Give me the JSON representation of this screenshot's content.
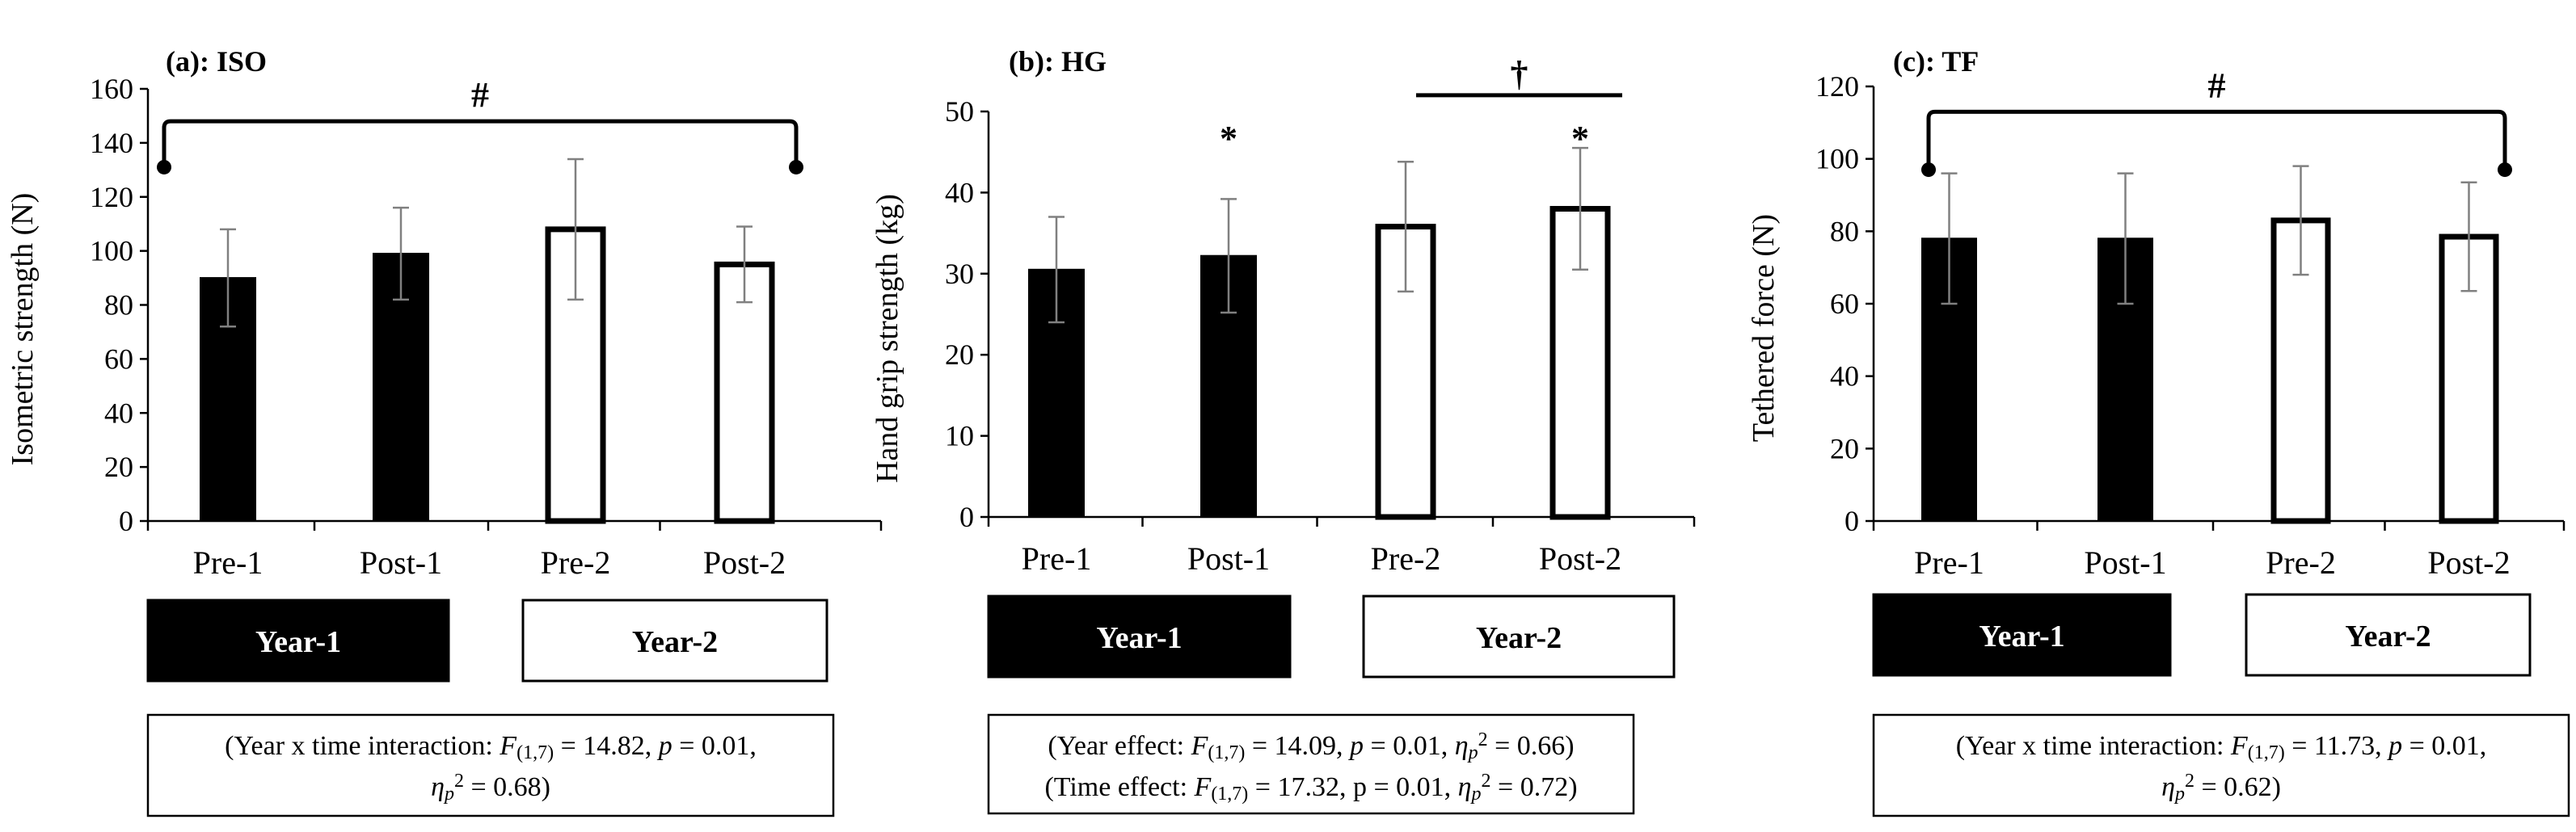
{
  "figure": {
    "background": "#ffffff"
  },
  "chart_data": [
    {
      "type": "bar",
      "title": "(a): ISO",
      "ylabel": "Isometric strength (N)",
      "xlabel": "",
      "ylim": [
        0,
        160
      ],
      "yticks": [
        0,
        20,
        40,
        60,
        80,
        100,
        120,
        140,
        160
      ],
      "categories": [
        "Pre-1",
        "Post-1",
        "Pre-2",
        "Post-2"
      ],
      "values": [
        90,
        99,
        108,
        95
      ],
      "errors": [
        18,
        17,
        26,
        14
      ],
      "bar_fill": [
        "#000000",
        "#000000",
        "#ffffff",
        "#ffffff"
      ],
      "annotations": [
        {
          "text": "#",
          "kind": "bracket",
          "from": 0,
          "to": 3,
          "y": 148,
          "end_y": 131
        }
      ],
      "year_labels": [
        "Year-1",
        "Year-2"
      ],
      "stats": [
        {
          "parts": [
            {
              "t": "(Year x time interaction: "
            },
            {
              "t": "F",
              "i": 1
            },
            {
              "t": "(1,7)",
              "sub": 1
            },
            {
              "t": " = 14.82, "
            },
            {
              "t": "p",
              "i": 1
            },
            {
              "t": " = 0.01,"
            }
          ]
        },
        {
          "parts": [
            {
              "t": "η",
              "i": 1
            },
            {
              "t": "p",
              "i": 1,
              "sub": 1
            },
            {
              "t": "2",
              "sup": 1
            },
            {
              "t": " = 0.68)"
            }
          ]
        }
      ]
    },
    {
      "type": "bar",
      "title": "(b): HG",
      "ylabel": "Hand grip strength (kg)",
      "xlabel": "",
      "ylim": [
        0,
        50
      ],
      "yticks": [
        0,
        10,
        20,
        30,
        40,
        50
      ],
      "categories": [
        "Pre-1",
        "Post-1",
        "Pre-2",
        "Post-2"
      ],
      "values": [
        30.5,
        32.2,
        35.8,
        38
      ],
      "errors": [
        6.5,
        7,
        8,
        7.5
      ],
      "bar_fill": [
        "#000000",
        "#000000",
        "#ffffff",
        "#ffffff"
      ],
      "annotations": [
        {
          "text": "*",
          "kind": "star",
          "bar": 1,
          "y": 47
        },
        {
          "text": "*",
          "kind": "star",
          "bar": 3,
          "y": 47
        },
        {
          "text": "†",
          "kind": "line",
          "from": 2,
          "to": 3,
          "y": 52
        }
      ],
      "year_labels": [
        "Year-1",
        "Year-2"
      ],
      "stats": [
        {
          "parts": [
            {
              "t": "(Year effect: "
            },
            {
              "t": "F",
              "i": 1
            },
            {
              "t": "(1,7)",
              "sub": 1
            },
            {
              "t": " = 14.09, "
            },
            {
              "t": "p",
              "i": 1
            },
            {
              "t": " = 0.01, "
            },
            {
              "t": "η",
              "i": 1
            },
            {
              "t": "p",
              "i": 1,
              "sub": 1
            },
            {
              "t": "2",
              "sup": 1
            },
            {
              "t": " = 0.66)"
            }
          ]
        },
        {
          "parts": [
            {
              "t": "(Time effect: "
            },
            {
              "t": "F",
              "i": 1
            },
            {
              "t": "(1,7)",
              "sub": 1
            },
            {
              "t": " = 17.32, p = 0.01, "
            },
            {
              "t": "η",
              "i": 1
            },
            {
              "t": "p",
              "i": 1,
              "sub": 1
            },
            {
              "t": "2",
              "sup": 1
            },
            {
              "t": " = 0.72)"
            }
          ]
        }
      ]
    },
    {
      "type": "bar",
      "title": "(c): TF",
      "ylabel": "Tethered force (N)",
      "xlabel": "",
      "ylim": [
        0,
        120
      ],
      "yticks": [
        0,
        20,
        40,
        60,
        80,
        100,
        120
      ],
      "categories": [
        "Pre-1",
        "Post-1",
        "Pre-2",
        "Post-2"
      ],
      "values": [
        78,
        78,
        83,
        78.5
      ],
      "errors": [
        18,
        18,
        15,
        15
      ],
      "bar_fill": [
        "#000000",
        "#000000",
        "#ffffff",
        "#ffffff"
      ],
      "annotations": [
        {
          "text": "#",
          "kind": "bracket",
          "from": 0,
          "to": 3,
          "y": 113,
          "end_y": 97
        }
      ],
      "year_labels": [
        "Year-1",
        "Year-2"
      ],
      "stats": [
        {
          "parts": [
            {
              "t": "(Year x time interaction: "
            },
            {
              "t": "F",
              "i": 1
            },
            {
              "t": "(1,7)",
              "sub": 1
            },
            {
              "t": " = 11.73, "
            },
            {
              "t": "p",
              "i": 1
            },
            {
              "t": " = 0.01,"
            }
          ]
        },
        {
          "parts": [
            {
              "t": "η",
              "i": 1
            },
            {
              "t": "p",
              "i": 1,
              "sub": 1
            },
            {
              "t": "2",
              "sup": 1
            },
            {
              "t": " = 0.62)"
            }
          ]
        }
      ]
    }
  ]
}
